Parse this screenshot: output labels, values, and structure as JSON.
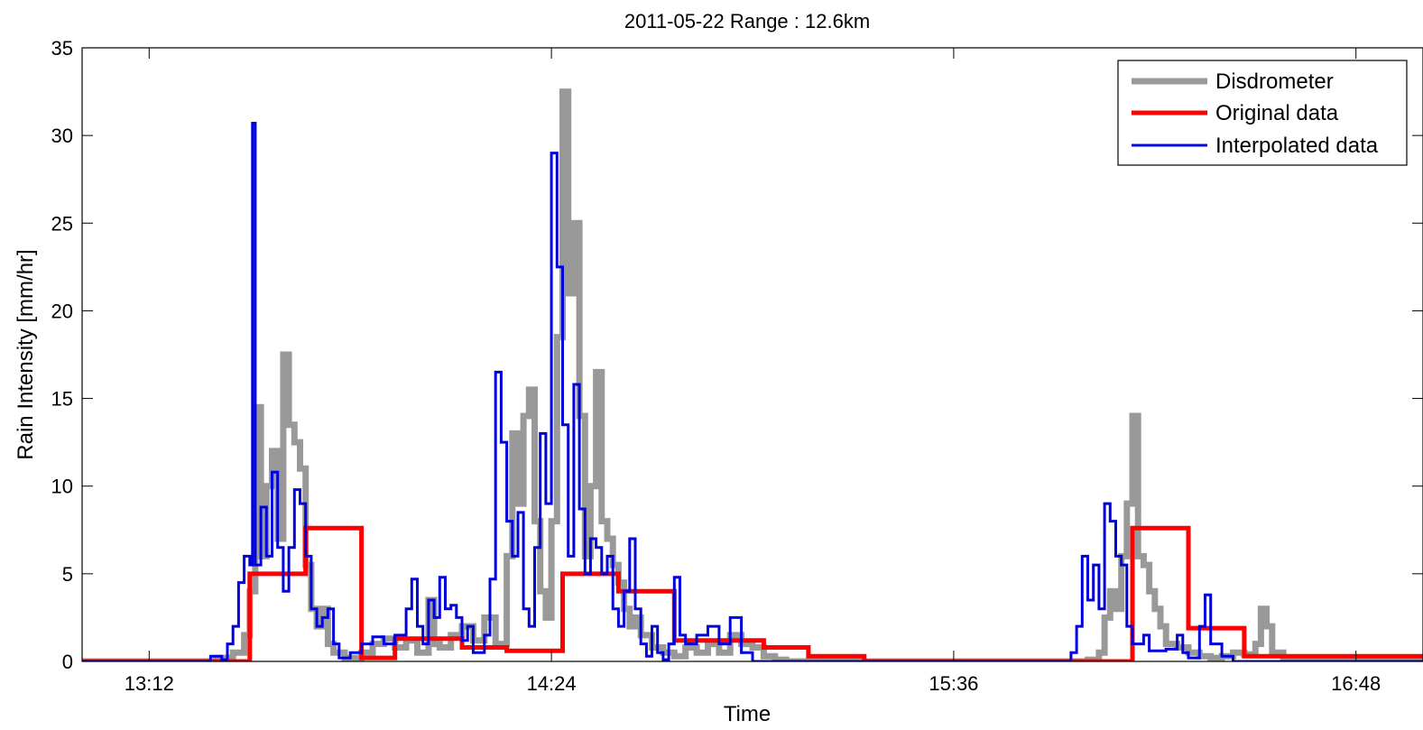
{
  "chart_data": {
    "type": "line",
    "title": "2011-05-22 Range : 12.6km",
    "xlabel": "Time",
    "ylabel": "Rain Intensity [mm/hr]",
    "xlim_minutes_after_midnight": [
      780,
      1020
    ],
    "ylim": [
      0,
      35
    ],
    "yticks": [
      0,
      5,
      10,
      15,
      20,
      25,
      30,
      35
    ],
    "xticks": [
      {
        "minutes": 792,
        "label": "13:12"
      },
      {
        "minutes": 864,
        "label": "14:24"
      },
      {
        "minutes": 936,
        "label": "15:36"
      },
      {
        "minutes": 1008,
        "label": "16:48"
      }
    ],
    "grid": false,
    "legend_position": "top-right",
    "series": [
      {
        "name": "Disdrometer",
        "color": "#999999",
        "points": [
          [
            780,
            0
          ],
          [
            803,
            0
          ],
          [
            804,
            0.2
          ],
          [
            807,
            0.5
          ],
          [
            809,
            1.5
          ],
          [
            810,
            4
          ],
          [
            811,
            14.5
          ],
          [
            812,
            6
          ],
          [
            813,
            10
          ],
          [
            814,
            12
          ],
          [
            815,
            7
          ],
          [
            816,
            17.5
          ],
          [
            817,
            13.5
          ],
          [
            818,
            12.5
          ],
          [
            819,
            11
          ],
          [
            820,
            5.5
          ],
          [
            821,
            3
          ],
          [
            822,
            2
          ],
          [
            823,
            3
          ],
          [
            824,
            1
          ],
          [
            825,
            0.5
          ],
          [
            827,
            0.2
          ],
          [
            830,
            0.5
          ],
          [
            832,
            1
          ],
          [
            834,
            1.3
          ],
          [
            836,
            0.8
          ],
          [
            838,
            1.2
          ],
          [
            840,
            0.5
          ],
          [
            842,
            3.5
          ],
          [
            843,
            1
          ],
          [
            844,
            0.8
          ],
          [
            846,
            1.5
          ],
          [
            848,
            2
          ],
          [
            850,
            1.2
          ],
          [
            852,
            2.5
          ],
          [
            854,
            1
          ],
          [
            856,
            6
          ],
          [
            857,
            13
          ],
          [
            858,
            9
          ],
          [
            859,
            14
          ],
          [
            860,
            15.5
          ],
          [
            861,
            8
          ],
          [
            862,
            4
          ],
          [
            863,
            2.5
          ],
          [
            864,
            8
          ],
          [
            865,
            18.5
          ],
          [
            866,
            32.5
          ],
          [
            867,
            21
          ],
          [
            868,
            25
          ],
          [
            869,
            14
          ],
          [
            870,
            6
          ],
          [
            871,
            10
          ],
          [
            872,
            16.5
          ],
          [
            873,
            8
          ],
          [
            874,
            7
          ],
          [
            875,
            5.5
          ],
          [
            876,
            4.5
          ],
          [
            877,
            3
          ],
          [
            878,
            2
          ],
          [
            879,
            2.5
          ],
          [
            880,
            1.5
          ],
          [
            882,
            0.8
          ],
          [
            884,
            0.5
          ],
          [
            886,
            0.3
          ],
          [
            888,
            0.8
          ],
          [
            890,
            0.5
          ],
          [
            892,
            1
          ],
          [
            894,
            0.5
          ],
          [
            896,
            1.5
          ],
          [
            898,
            1
          ],
          [
            900,
            0.8
          ],
          [
            902,
            0.3
          ],
          [
            904,
            0.1
          ],
          [
            906,
            0
          ],
          [
            955,
            0
          ],
          [
            960,
            0.1
          ],
          [
            962,
            0.5
          ],
          [
            963,
            2.5
          ],
          [
            964,
            4
          ],
          [
            965,
            3
          ],
          [
            966,
            6
          ],
          [
            967,
            9
          ],
          [
            968,
            14
          ],
          [
            969,
            6
          ],
          [
            970,
            5.5
          ],
          [
            971,
            4
          ],
          [
            972,
            3
          ],
          [
            973,
            2
          ],
          [
            974,
            1
          ],
          [
            976,
            0.8
          ],
          [
            978,
            0.5
          ],
          [
            980,
            0.3
          ],
          [
            982,
            0.2
          ],
          [
            984,
            0.3
          ],
          [
            986,
            0.5
          ],
          [
            988,
            0.4
          ],
          [
            990,
            1
          ],
          [
            991,
            3
          ],
          [
            992,
            2
          ],
          [
            993,
            0.5
          ],
          [
            995,
            0
          ],
          [
            1020,
            0
          ]
        ]
      },
      {
        "name": "Original data",
        "color": "#ff0000",
        "points": [
          [
            780,
            0
          ],
          [
            810,
            0
          ],
          [
            810,
            5
          ],
          [
            820,
            5
          ],
          [
            820,
            7.6
          ],
          [
            830,
            7.6
          ],
          [
            830,
            0.2
          ],
          [
            836,
            0.2
          ],
          [
            836,
            1.3
          ],
          [
            848,
            1.3
          ],
          [
            848,
            0.8
          ],
          [
            856,
            0.8
          ],
          [
            856,
            0.6
          ],
          [
            866,
            0.6
          ],
          [
            866,
            5
          ],
          [
            876,
            5
          ],
          [
            876,
            4
          ],
          [
            886,
            4
          ],
          [
            886,
            1.2
          ],
          [
            902,
            1.2
          ],
          [
            902,
            0.8
          ],
          [
            910,
            0.8
          ],
          [
            910,
            0.3
          ],
          [
            920,
            0.3
          ],
          [
            920,
            0
          ],
          [
            968,
            0
          ],
          [
            968,
            7.6
          ],
          [
            978,
            7.6
          ],
          [
            978,
            1.9
          ],
          [
            988,
            1.9
          ],
          [
            988,
            0.3
          ],
          [
            1020,
            0.3
          ]
        ]
      },
      {
        "name": "Interpolated data",
        "color": "#0000dd",
        "points": [
          [
            780,
            0
          ],
          [
            802,
            0
          ],
          [
            803,
            0.3
          ],
          [
            805,
            0.1
          ],
          [
            806,
            1
          ],
          [
            807,
            2
          ],
          [
            808,
            4.5
          ],
          [
            809,
            6
          ],
          [
            810,
            5.5
          ],
          [
            810.5,
            30.7
          ],
          [
            811,
            5.5
          ],
          [
            812,
            8.8
          ],
          [
            813,
            6
          ],
          [
            814,
            10.8
          ],
          [
            815,
            6.5
          ],
          [
            816,
            4
          ],
          [
            817,
            6.5
          ],
          [
            818,
            9.8
          ],
          [
            819,
            9
          ],
          [
            820,
            6
          ],
          [
            821,
            3
          ],
          [
            822,
            2
          ],
          [
            823,
            2.5
          ],
          [
            824,
            3
          ],
          [
            825,
            1
          ],
          [
            826,
            0.2
          ],
          [
            828,
            0.5
          ],
          [
            830,
            1
          ],
          [
            832,
            1.4
          ],
          [
            834,
            1
          ],
          [
            836,
            1.5
          ],
          [
            838,
            3
          ],
          [
            839,
            4.7
          ],
          [
            840,
            2
          ],
          [
            841,
            1
          ],
          [
            842,
            3.5
          ],
          [
            843,
            2.5
          ],
          [
            844,
            4.8
          ],
          [
            845,
            3
          ],
          [
            846,
            3.2
          ],
          [
            847,
            2.5
          ],
          [
            848,
            1.2
          ],
          [
            849,
            2
          ],
          [
            850,
            0.5
          ],
          [
            852,
            1.5
          ],
          [
            853,
            4.7
          ],
          [
            854,
            16.5
          ],
          [
            855,
            12.5
          ],
          [
            856,
            8
          ],
          [
            857,
            6
          ],
          [
            858,
            8.5
          ],
          [
            859,
            3
          ],
          [
            860,
            2
          ],
          [
            861,
            6.5
          ],
          [
            862,
            13
          ],
          [
            863,
            9
          ],
          [
            864,
            29
          ],
          [
            865,
            22.5
          ],
          [
            866,
            13.5
          ],
          [
            867,
            6
          ],
          [
            868,
            15.8
          ],
          [
            869,
            8.7
          ],
          [
            870,
            5
          ],
          [
            871,
            7
          ],
          [
            872,
            6.5
          ],
          [
            873,
            5
          ],
          [
            874,
            6
          ],
          [
            875,
            3
          ],
          [
            876,
            2
          ],
          [
            877,
            4
          ],
          [
            878,
            7
          ],
          [
            879,
            3
          ],
          [
            880,
            1
          ],
          [
            881,
            0.3
          ],
          [
            882,
            2
          ],
          [
            883,
            0.5
          ],
          [
            884,
            0.1
          ],
          [
            885,
            1
          ],
          [
            886,
            4.8
          ],
          [
            887,
            1.5
          ],
          [
            888,
            1
          ],
          [
            890,
            1.5
          ],
          [
            892,
            2
          ],
          [
            894,
            1
          ],
          [
            896,
            2.5
          ],
          [
            898,
            0.5
          ],
          [
            900,
            0
          ],
          [
            956,
            0
          ],
          [
            957,
            0.5
          ],
          [
            958,
            2
          ],
          [
            959,
            6
          ],
          [
            960,
            3.5
          ],
          [
            961,
            5.5
          ],
          [
            962,
            3
          ],
          [
            963,
            9
          ],
          [
            964,
            8
          ],
          [
            965,
            6
          ],
          [
            966,
            5.5
          ],
          [
            967,
            2
          ],
          [
            968,
            1
          ],
          [
            970,
            1.5
          ],
          [
            971,
            0.6
          ],
          [
            974,
            0.7
          ],
          [
            976,
            1.5
          ],
          [
            977,
            0.5
          ],
          [
            978,
            0.2
          ],
          [
            980,
            2
          ],
          [
            981,
            3.8
          ],
          [
            982,
            1
          ],
          [
            984,
            0.3
          ],
          [
            986,
            0
          ],
          [
            1020,
            0
          ]
        ]
      }
    ]
  }
}
